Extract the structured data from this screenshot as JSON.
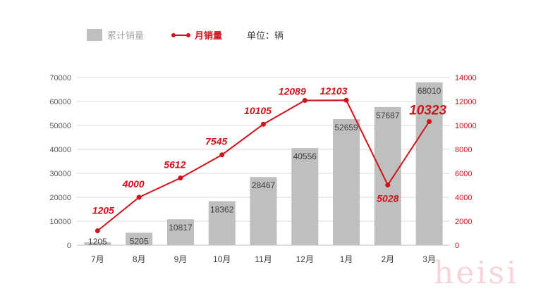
{
  "chart_data": {
    "type": "bar+line",
    "categories": [
      "7月",
      "8月",
      "9月",
      "10月",
      "11月",
      "12月",
      "1月",
      "2月",
      "3月"
    ],
    "series": [
      {
        "name": "累计销量",
        "type": "bar",
        "axis": "left",
        "color": "#bfbfbf",
        "values": [
          1205,
          5205,
          10817,
          18362,
          28467,
          40556,
          52659,
          57687,
          68010
        ]
      },
      {
        "name": "月销量",
        "type": "line",
        "axis": "right",
        "color": "#d0121b",
        "values": [
          1205,
          4000,
          5612,
          7545,
          10105,
          12089,
          12103,
          5028,
          10323
        ]
      }
    ],
    "unit_label": "单位：辆",
    "left_axis": {
      "range": [
        0,
        70000
      ],
      "ticks": [
        0,
        10000,
        20000,
        30000,
        40000,
        50000,
        60000,
        70000
      ]
    },
    "right_axis": {
      "range": [
        0,
        14000
      ],
      "ticks": [
        0,
        2000,
        4000,
        6000,
        8000,
        10000,
        12000,
        14000
      ]
    },
    "grid": true,
    "legend_position": "top-left"
  },
  "watermark": "heisi"
}
